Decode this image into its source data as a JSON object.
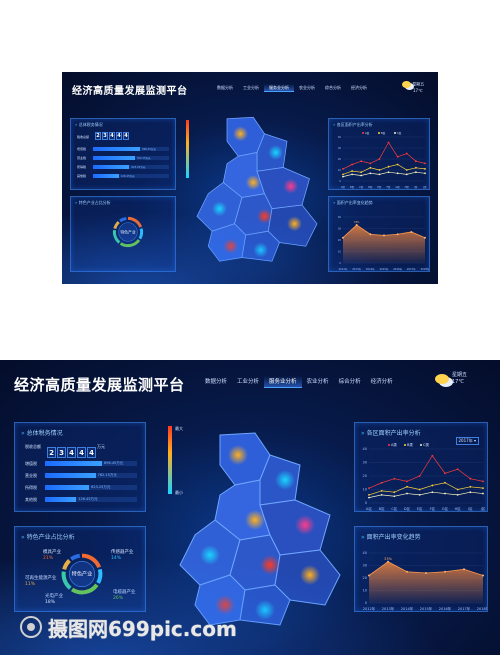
{
  "header": {
    "title": "经济高质量发展监测平台",
    "nav": [
      "数据分析",
      "工业分析",
      "服务业分析",
      "农业分析",
      "综合分析",
      "经济分析"
    ],
    "active_nav": 2,
    "weather": {
      "line1": "星期五",
      "line2": "17℃",
      "icon": "partly-cloudy-icon"
    }
  },
  "tax": {
    "title": "总体税务情况",
    "digits": [
      "2",
      "3",
      "4",
      "4",
      "4"
    ],
    "unit": "万元",
    "prefix": "税收总额",
    "rows": [
      {
        "label": "增值税",
        "value": "896.45万元",
        "pct": 0.62
      },
      {
        "label": "营业税",
        "value": "762.15万元",
        "pct": 0.55
      },
      {
        "label": "所得税",
        "value": "623.25万元",
        "pct": 0.48
      },
      {
        "label": "其他税",
        "value": "126.45万元",
        "pct": 0.34
      }
    ]
  },
  "industry": {
    "title": "特色产业占比分析",
    "center": "特色产业",
    "items": [
      {
        "name": "模具产业",
        "pct": "21%",
        "color": "#f36a2d"
      },
      {
        "name": "传感器产业",
        "pct": "14%",
        "color": "#2ec4ff"
      },
      {
        "name": "可再生能源产业",
        "pct": "11%",
        "color": "#f0b13b"
      },
      {
        "name": "光电产业",
        "pct": "18%",
        "color": "#ffffff"
      },
      {
        "name": "电缆器产业",
        "pct": "26%",
        "color": "#6fd23e"
      }
    ],
    "slices": [
      21,
      14,
      26,
      18,
      11,
      10
    ]
  },
  "legend": {
    "max": "最大",
    "min": "最小"
  },
  "rate_chart": {
    "title": "各区面积产出率分析",
    "dropdown": "2017年",
    "legend": [
      "A类",
      "B类",
      "C类"
    ],
    "categories": [
      "A区",
      "B区",
      "C区",
      "D区",
      "E区",
      "F区",
      "G区",
      "H区",
      "I区",
      "J区"
    ],
    "series": [
      {
        "name": "A类",
        "color": "#ff3b3b",
        "values": [
          11,
          15,
          18,
          16,
          20,
          35,
          22,
          25,
          18,
          16
        ]
      },
      {
        "name": "B类",
        "color": "#ffd23a",
        "values": [
          6,
          9,
          8,
          12,
          10,
          13,
          15,
          10,
          12,
          11
        ]
      },
      {
        "name": "C类",
        "color": "#f6f2c0",
        "values": [
          4,
          6,
          5,
          7,
          6,
          8,
          7,
          6,
          8,
          7
        ]
      }
    ],
    "ylim": [
      0,
      40
    ],
    "yticks": [
      "40",
      "30",
      "20",
      "10",
      "0"
    ]
  },
  "trend_chart": {
    "title": "面积产出率变化趋势",
    "years": [
      "2012年",
      "2013年",
      "2014年",
      "2015年",
      "2016年",
      "2017年",
      "2018年"
    ],
    "values": [
      22,
      33,
      25,
      24,
      25,
      27,
      22
    ],
    "label": "33%",
    "ylim": [
      0,
      40
    ],
    "yticks": [
      "40",
      "30",
      "20",
      "10",
      "0"
    ]
  },
  "watermark": {
    "text": "摄图网699pic.com"
  }
}
